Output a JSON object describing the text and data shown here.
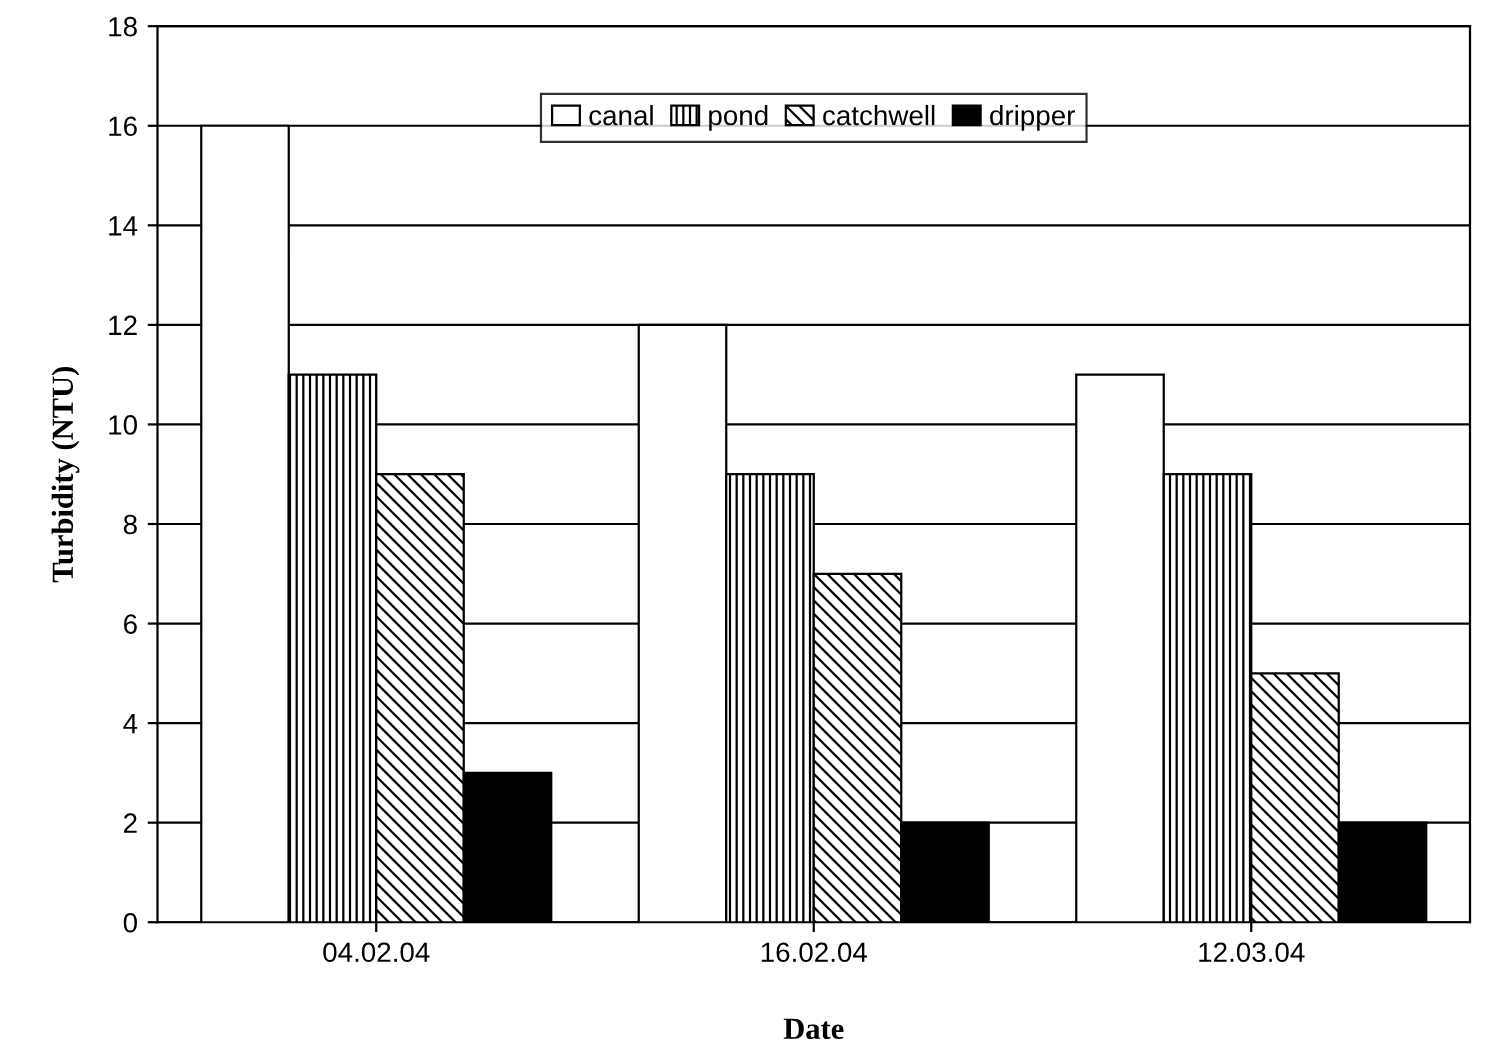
{
  "chart_data": {
    "type": "bar",
    "xlabel": "Date",
    "ylabel": "Turbidity (NTU)",
    "categories": [
      "04.02.04",
      "16.02.04",
      "12.03.04"
    ],
    "series": [
      {
        "name": "canal",
        "color": "#ffffff",
        "values": [
          16,
          12,
          11
        ]
      },
      {
        "name": "pond",
        "color": "#000000",
        "values": [
          11,
          9,
          9
        ]
      },
      {
        "name": "catchwell",
        "color": "#000000",
        "values": [
          9,
          7,
          5
        ]
      },
      {
        "name": "dripper",
        "color": "#000000",
        "values": [
          3,
          2,
          2
        ]
      }
    ],
    "ylim": [
      0,
      18
    ],
    "yticks": [
      0,
      2,
      4,
      6,
      8,
      10,
      12,
      14,
      16,
      18
    ],
    "grid": "y",
    "legend": "top"
  }
}
